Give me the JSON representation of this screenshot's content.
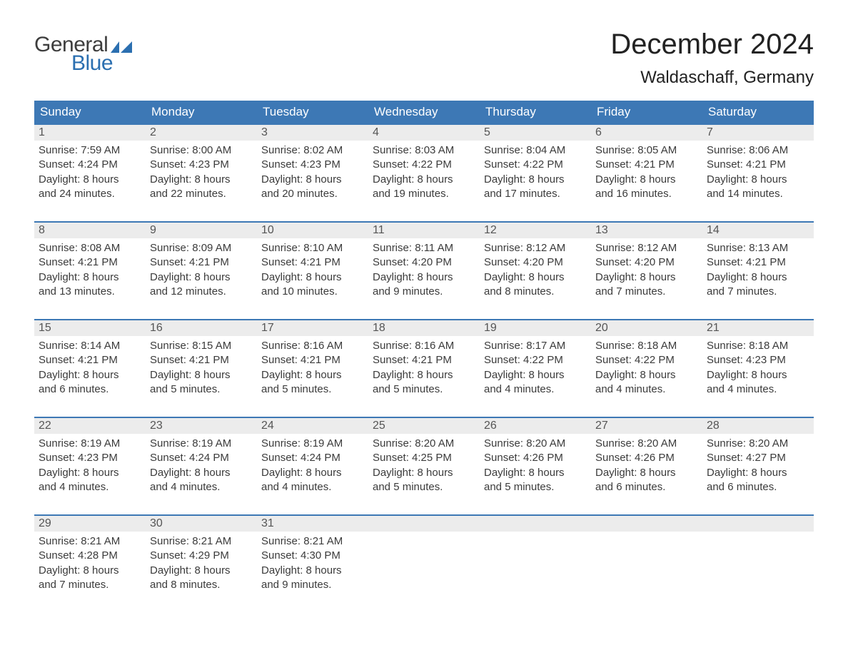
{
  "brand": {
    "text_general": "General",
    "text_blue": "Blue",
    "flag_color": "#2b6fb0",
    "text_color_dark": "#3d3d3d"
  },
  "title": {
    "month": "December 2024",
    "location": "Waldaschaff, Germany"
  },
  "colors": {
    "header_bg": "#3d78b5",
    "header_text": "#ffffff",
    "daynum_bg": "#ececec",
    "daynum_text": "#555555",
    "body_text": "#3b3b3b",
    "week_border": "#3d78b5",
    "page_bg": "#ffffff"
  },
  "typography": {
    "title_fontsize": 40,
    "location_fontsize": 24,
    "dayheader_fontsize": 17,
    "daynum_fontsize": 16,
    "body_fontsize": 15
  },
  "day_headers": [
    "Sunday",
    "Monday",
    "Tuesday",
    "Wednesday",
    "Thursday",
    "Friday",
    "Saturday"
  ],
  "weeks": [
    [
      {
        "n": "1",
        "sunrise": "Sunrise: 7:59 AM",
        "sunset": "Sunset: 4:24 PM",
        "d1": "Daylight: 8 hours",
        "d2": "and 24 minutes."
      },
      {
        "n": "2",
        "sunrise": "Sunrise: 8:00 AM",
        "sunset": "Sunset: 4:23 PM",
        "d1": "Daylight: 8 hours",
        "d2": "and 22 minutes."
      },
      {
        "n": "3",
        "sunrise": "Sunrise: 8:02 AM",
        "sunset": "Sunset: 4:23 PM",
        "d1": "Daylight: 8 hours",
        "d2": "and 20 minutes."
      },
      {
        "n": "4",
        "sunrise": "Sunrise: 8:03 AM",
        "sunset": "Sunset: 4:22 PM",
        "d1": "Daylight: 8 hours",
        "d2": "and 19 minutes."
      },
      {
        "n": "5",
        "sunrise": "Sunrise: 8:04 AM",
        "sunset": "Sunset: 4:22 PM",
        "d1": "Daylight: 8 hours",
        "d2": "and 17 minutes."
      },
      {
        "n": "6",
        "sunrise": "Sunrise: 8:05 AM",
        "sunset": "Sunset: 4:21 PM",
        "d1": "Daylight: 8 hours",
        "d2": "and 16 minutes."
      },
      {
        "n": "7",
        "sunrise": "Sunrise: 8:06 AM",
        "sunset": "Sunset: 4:21 PM",
        "d1": "Daylight: 8 hours",
        "d2": "and 14 minutes."
      }
    ],
    [
      {
        "n": "8",
        "sunrise": "Sunrise: 8:08 AM",
        "sunset": "Sunset: 4:21 PM",
        "d1": "Daylight: 8 hours",
        "d2": "and 13 minutes."
      },
      {
        "n": "9",
        "sunrise": "Sunrise: 8:09 AM",
        "sunset": "Sunset: 4:21 PM",
        "d1": "Daylight: 8 hours",
        "d2": "and 12 minutes."
      },
      {
        "n": "10",
        "sunrise": "Sunrise: 8:10 AM",
        "sunset": "Sunset: 4:21 PM",
        "d1": "Daylight: 8 hours",
        "d2": "and 10 minutes."
      },
      {
        "n": "11",
        "sunrise": "Sunrise: 8:11 AM",
        "sunset": "Sunset: 4:20 PM",
        "d1": "Daylight: 8 hours",
        "d2": "and 9 minutes."
      },
      {
        "n": "12",
        "sunrise": "Sunrise: 8:12 AM",
        "sunset": "Sunset: 4:20 PM",
        "d1": "Daylight: 8 hours",
        "d2": "and 8 minutes."
      },
      {
        "n": "13",
        "sunrise": "Sunrise: 8:12 AM",
        "sunset": "Sunset: 4:20 PM",
        "d1": "Daylight: 8 hours",
        "d2": "and 7 minutes."
      },
      {
        "n": "14",
        "sunrise": "Sunrise: 8:13 AM",
        "sunset": "Sunset: 4:21 PM",
        "d1": "Daylight: 8 hours",
        "d2": "and 7 minutes."
      }
    ],
    [
      {
        "n": "15",
        "sunrise": "Sunrise: 8:14 AM",
        "sunset": "Sunset: 4:21 PM",
        "d1": "Daylight: 8 hours",
        "d2": "and 6 minutes."
      },
      {
        "n": "16",
        "sunrise": "Sunrise: 8:15 AM",
        "sunset": "Sunset: 4:21 PM",
        "d1": "Daylight: 8 hours",
        "d2": "and 5 minutes."
      },
      {
        "n": "17",
        "sunrise": "Sunrise: 8:16 AM",
        "sunset": "Sunset: 4:21 PM",
        "d1": "Daylight: 8 hours",
        "d2": "and 5 minutes."
      },
      {
        "n": "18",
        "sunrise": "Sunrise: 8:16 AM",
        "sunset": "Sunset: 4:21 PM",
        "d1": "Daylight: 8 hours",
        "d2": "and 5 minutes."
      },
      {
        "n": "19",
        "sunrise": "Sunrise: 8:17 AM",
        "sunset": "Sunset: 4:22 PM",
        "d1": "Daylight: 8 hours",
        "d2": "and 4 minutes."
      },
      {
        "n": "20",
        "sunrise": "Sunrise: 8:18 AM",
        "sunset": "Sunset: 4:22 PM",
        "d1": "Daylight: 8 hours",
        "d2": "and 4 minutes."
      },
      {
        "n": "21",
        "sunrise": "Sunrise: 8:18 AM",
        "sunset": "Sunset: 4:23 PM",
        "d1": "Daylight: 8 hours",
        "d2": "and 4 minutes."
      }
    ],
    [
      {
        "n": "22",
        "sunrise": "Sunrise: 8:19 AM",
        "sunset": "Sunset: 4:23 PM",
        "d1": "Daylight: 8 hours",
        "d2": "and 4 minutes."
      },
      {
        "n": "23",
        "sunrise": "Sunrise: 8:19 AM",
        "sunset": "Sunset: 4:24 PM",
        "d1": "Daylight: 8 hours",
        "d2": "and 4 minutes."
      },
      {
        "n": "24",
        "sunrise": "Sunrise: 8:19 AM",
        "sunset": "Sunset: 4:24 PM",
        "d1": "Daylight: 8 hours",
        "d2": "and 4 minutes."
      },
      {
        "n": "25",
        "sunrise": "Sunrise: 8:20 AM",
        "sunset": "Sunset: 4:25 PM",
        "d1": "Daylight: 8 hours",
        "d2": "and 5 minutes."
      },
      {
        "n": "26",
        "sunrise": "Sunrise: 8:20 AM",
        "sunset": "Sunset: 4:26 PM",
        "d1": "Daylight: 8 hours",
        "d2": "and 5 minutes."
      },
      {
        "n": "27",
        "sunrise": "Sunrise: 8:20 AM",
        "sunset": "Sunset: 4:26 PM",
        "d1": "Daylight: 8 hours",
        "d2": "and 6 minutes."
      },
      {
        "n": "28",
        "sunrise": "Sunrise: 8:20 AM",
        "sunset": "Sunset: 4:27 PM",
        "d1": "Daylight: 8 hours",
        "d2": "and 6 minutes."
      }
    ],
    [
      {
        "n": "29",
        "sunrise": "Sunrise: 8:21 AM",
        "sunset": "Sunset: 4:28 PM",
        "d1": "Daylight: 8 hours",
        "d2": "and 7 minutes."
      },
      {
        "n": "30",
        "sunrise": "Sunrise: 8:21 AM",
        "sunset": "Sunset: 4:29 PM",
        "d1": "Daylight: 8 hours",
        "d2": "and 8 minutes."
      },
      {
        "n": "31",
        "sunrise": "Sunrise: 8:21 AM",
        "sunset": "Sunset: 4:30 PM",
        "d1": "Daylight: 8 hours",
        "d2": "and 9 minutes."
      },
      null,
      null,
      null,
      null
    ]
  ]
}
